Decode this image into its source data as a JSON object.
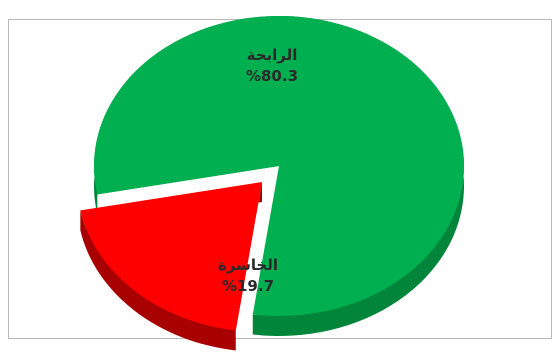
{
  "chart_data": {
    "type": "pie",
    "title": "",
    "slices": [
      {
        "label": "الرابحة",
        "value": 80.3,
        "value_text": "%80.3",
        "color": "#00b050",
        "side_color": "#00853a"
      },
      {
        "label": "الخاسرة",
        "value": 19.7,
        "value_text": "%19.7",
        "color": "#ff0000",
        "side_color": "#a80000"
      }
    ],
    "legend": "none",
    "style": "3d-exploded"
  }
}
